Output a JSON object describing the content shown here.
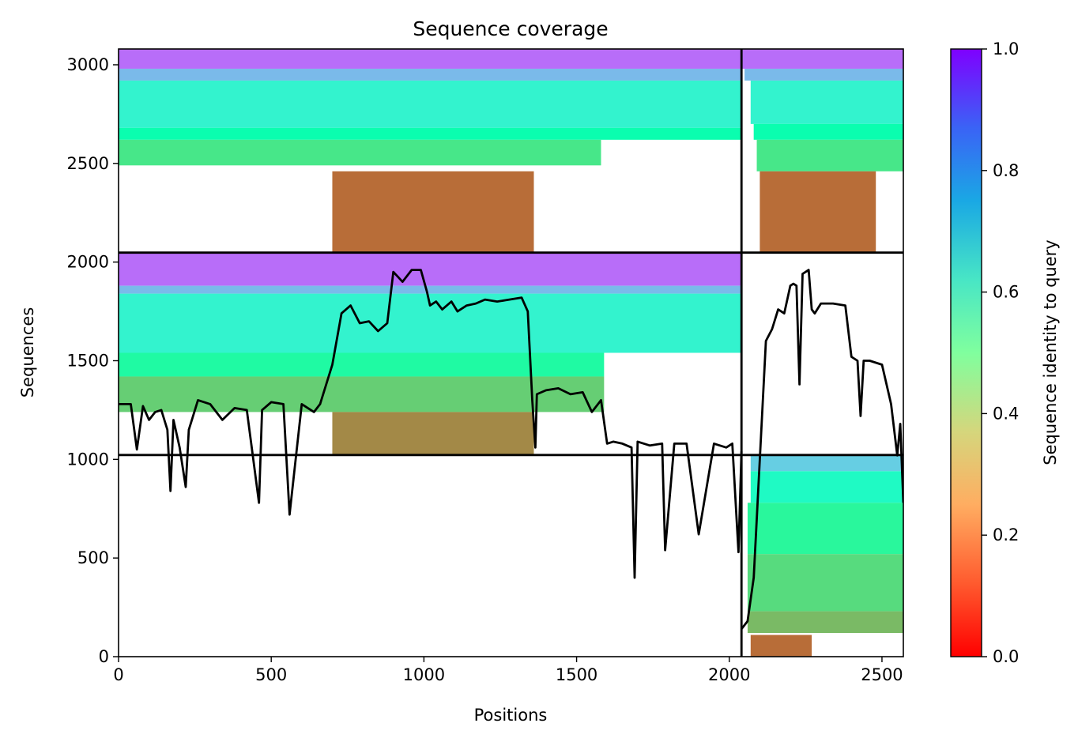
{
  "chart_data": {
    "type": "heatmap",
    "title": "Sequence coverage",
    "xlabel": "Positions",
    "ylabel": "Sequences",
    "xlim": [
      0,
      2570
    ],
    "ylim": [
      0,
      3080
    ],
    "xticks": [
      0,
      500,
      1000,
      1500,
      2000,
      2500
    ],
    "yticks": [
      0,
      500,
      1000,
      1500,
      2000,
      2500,
      3000
    ],
    "grid": false,
    "colorbar": {
      "label": "Sequence identity to query",
      "colormap": "rainbow_r",
      "range": [
        0.0,
        1.0
      ],
      "ticks": [
        "0.0",
        "0.2",
        "0.4",
        "0.6",
        "0.8",
        "1.0"
      ]
    },
    "chain_boundary_x": 2040,
    "block_boundaries_y": [
      1022,
      2048
    ],
    "blocks": [
      {
        "x": [
          0,
          2040
        ],
        "rows": [
          {
            "y": [
              2980,
              3080
            ],
            "x": [
              0,
              2040
            ],
            "identity": 0.86
          },
          {
            "y": [
              2920,
              2980
            ],
            "x": [
              0,
              2040
            ],
            "identity": 0.74
          },
          {
            "y": [
              2680,
              2920
            ],
            "x": [
              0,
              2040
            ],
            "identity": 0.6
          },
          {
            "y": [
              2620,
              2680
            ],
            "x": [
              0,
              2040
            ],
            "identity": 0.48
          },
          {
            "y": [
              2490,
              2620
            ],
            "x": [
              0,
              1580
            ],
            "identity": 0.36
          },
          {
            "y": [
              2048,
              2460
            ],
            "x": [
              700,
              1360
            ],
            "identity": 0.14
          }
        ]
      },
      {
        "x": [
          2040,
          2570
        ],
        "rows": [
          {
            "y": [
              2980,
              3080
            ],
            "x": [
              2040,
              2570
            ],
            "identity": 0.86
          },
          {
            "y": [
              2920,
              2980
            ],
            "x": [
              2050,
              2570
            ],
            "identity": 0.74
          },
          {
            "y": [
              2700,
              2920
            ],
            "x": [
              2070,
              2570
            ],
            "identity": 0.6
          },
          {
            "y": [
              2620,
              2700
            ],
            "x": [
              2080,
              2570
            ],
            "identity": 0.48
          },
          {
            "y": [
              2460,
              2620
            ],
            "x": [
              2090,
              2570
            ],
            "identity": 0.36
          },
          {
            "y": [
              2048,
              2460
            ],
            "x": [
              2100,
              2480
            ],
            "identity": 0.14
          }
        ]
      },
      {
        "x": [
          0,
          2040
        ],
        "rows": [
          {
            "y": [
              1880,
              2048
            ],
            "x": [
              0,
              2040
            ],
            "identity": 0.86
          },
          {
            "y": [
              1840,
              1880
            ],
            "x": [
              0,
              2040
            ],
            "identity": 0.74
          },
          {
            "y": [
              1540,
              1840
            ],
            "x": [
              0,
              2040
            ],
            "identity": 0.6
          },
          {
            "y": [
              1420,
              1540
            ],
            "x": [
              0,
              1590
            ],
            "identity": 0.44
          },
          {
            "y": [
              1240,
              1420
            ],
            "x": [
              0,
              1590
            ],
            "identity": 0.3
          },
          {
            "y": [
              1022,
              1240
            ],
            "x": [
              700,
              1360
            ],
            "identity": 0.18
          }
        ]
      },
      {
        "x": [
          2040,
          2570
        ],
        "rows": [
          {
            "y": [
              940,
              1022
            ],
            "x": [
              2070,
              2570
            ],
            "identity": 0.7
          },
          {
            "y": [
              780,
              940
            ],
            "x": [
              2070,
              2570
            ],
            "identity": 0.56
          },
          {
            "y": [
              520,
              780
            ],
            "x": [
              2060,
              2570
            ],
            "identity": 0.42
          },
          {
            "y": [
              230,
              520
            ],
            "x": [
              2060,
              2570
            ],
            "identity": 0.33
          },
          {
            "y": [
              120,
              230
            ],
            "x": [
              2060,
              2570
            ],
            "identity": 0.26
          },
          {
            "y": [
              0,
              110
            ],
            "x": [
              2070,
              2270
            ],
            "identity": 0.14
          }
        ]
      }
    ],
    "coverage_line": {
      "color": "#000000",
      "x": [
        0,
        40,
        60,
        80,
        100,
        120,
        140,
        160,
        170,
        180,
        200,
        220,
        230,
        260,
        300,
        340,
        380,
        420,
        460,
        470,
        500,
        540,
        560,
        600,
        640,
        660,
        700,
        730,
        760,
        790,
        820,
        850,
        880,
        900,
        930,
        960,
        990,
        1010,
        1020,
        1040,
        1060,
        1090,
        1110,
        1140,
        1170,
        1200,
        1240,
        1280,
        1320,
        1340,
        1355,
        1365,
        1370,
        1400,
        1440,
        1480,
        1520,
        1550,
        1580,
        1600,
        1620,
        1650,
        1680,
        1690,
        1700,
        1740,
        1780,
        1790,
        1820,
        1860,
        1900,
        1950,
        1990,
        2010,
        2030,
        2040
      ],
      "y": [
        1280,
        1280,
        1050,
        1270,
        1200,
        1240,
        1250,
        1150,
        840,
        1200,
        1060,
        860,
        1150,
        1300,
        1280,
        1200,
        1260,
        1250,
        780,
        1250,
        1290,
        1280,
        720,
        1280,
        1240,
        1280,
        1480,
        1740,
        1780,
        1690,
        1700,
        1650,
        1690,
        1950,
        1900,
        1960,
        1960,
        1850,
        1780,
        1800,
        1760,
        1800,
        1750,
        1780,
        1790,
        1810,
        1800,
        1810,
        1820,
        1750,
        1300,
        1060,
        1330,
        1350,
        1360,
        1330,
        1340,
        1240,
        1300,
        1080,
        1090,
        1080,
        1060,
        400,
        1090,
        1070,
        1080,
        540,
        1080,
        1080,
        620,
        1080,
        1060,
        1080,
        530,
        1040
      ],
      "x2": [
        2040,
        2060,
        2080,
        2100,
        2120,
        2140,
        2160,
        2180,
        2200,
        2210,
        2220,
        2230,
        2240,
        2260,
        2270,
        2280,
        2300,
        2340,
        2380,
        2400,
        2420,
        2430,
        2440,
        2460,
        2500,
        2530,
        2550,
        2560,
        2570
      ],
      "y2": [
        140,
        180,
        400,
        1000,
        1600,
        1660,
        1760,
        1740,
        1880,
        1890,
        1880,
        1380,
        1940,
        1960,
        1760,
        1740,
        1790,
        1790,
        1780,
        1520,
        1500,
        1220,
        1500,
        1500,
        1480,
        1280,
        1020,
        1180,
        780
      ]
    }
  }
}
